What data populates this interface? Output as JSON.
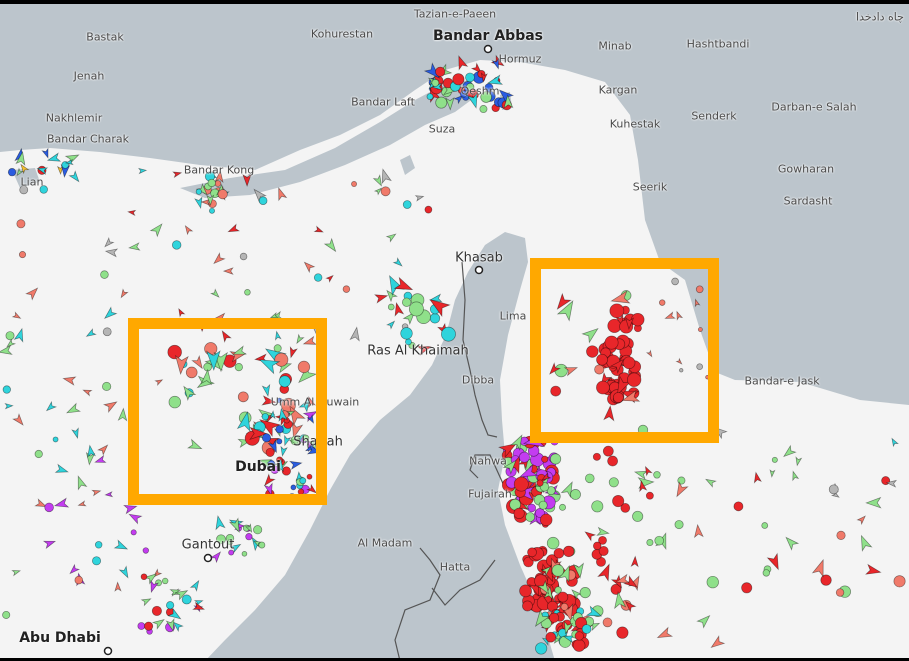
{
  "map": {
    "land_color": "#bcc5cc",
    "sea_color": "#f4f4f4",
    "highlight_color": "#ffa800",
    "places": [
      {
        "name": "Tazian-e-Paeen",
        "size": "small"
      },
      {
        "name": "Bandar Abbas",
        "size": "big"
      },
      {
        "name": "چاه دادخدا",
        "size": "small"
      },
      {
        "name": "Bastak",
        "size": "small"
      },
      {
        "name": "Kohurestan",
        "size": "small"
      },
      {
        "name": "Minab",
        "size": "small"
      },
      {
        "name": "Hashtbandi",
        "size": "small"
      },
      {
        "name": "Hormuz",
        "size": "small"
      },
      {
        "name": "Jenah",
        "size": "small"
      },
      {
        "name": "Qeshm",
        "size": "small"
      },
      {
        "name": "Kargan",
        "size": "small"
      },
      {
        "name": "Bandar Laft",
        "size": "small"
      },
      {
        "name": "Darban-e Salah",
        "size": "small"
      },
      {
        "name": "Nakhlemir",
        "size": "small"
      },
      {
        "name": "Senderk",
        "size": "small"
      },
      {
        "name": "Kuhestak",
        "size": "small"
      },
      {
        "name": "Suza",
        "size": "small"
      },
      {
        "name": "Bandar Charak",
        "size": "small"
      },
      {
        "name": "Bandar Kong",
        "size": "small"
      },
      {
        "name": "Gowharan",
        "size": "small"
      },
      {
        "name": "Lian",
        "size": "small"
      },
      {
        "name": "Seerik",
        "size": "small"
      },
      {
        "name": "Sardasht",
        "size": "small"
      },
      {
        "name": "Khasab",
        "size": "mid"
      },
      {
        "name": "Lima",
        "size": "small"
      },
      {
        "name": "Ras Al Khaimah",
        "size": "mid"
      },
      {
        "name": "Bandar-e Jask",
        "size": "small"
      },
      {
        "name": "Dibba",
        "size": "small"
      },
      {
        "name": "Umm Al Quwain",
        "size": "small"
      },
      {
        "name": "Sharjah",
        "size": "mid"
      },
      {
        "name": "Nahwa",
        "size": "small"
      },
      {
        "name": "Dubai",
        "size": "big"
      },
      {
        "name": "Fujairah",
        "size": "small"
      },
      {
        "name": "Gantout",
        "size": "mid"
      },
      {
        "name": "Al Madam",
        "size": "small"
      },
      {
        "name": "Hatta",
        "size": "small"
      },
      {
        "name": "Abu Dhabi",
        "size": "big"
      }
    ],
    "vessel_colors": {
      "red": "#e8262a",
      "green": "#8fe08a",
      "cyan": "#2fd4dc",
      "salmon": "#f07a6a",
      "purple": "#c33cf0",
      "blue": "#2a5ce0",
      "gray": "#b5b5b5",
      "yellow": "#f5c030"
    },
    "highlight_boxes": [
      "west-gulf-cluster",
      "gulf-of-oman-cluster"
    ]
  }
}
